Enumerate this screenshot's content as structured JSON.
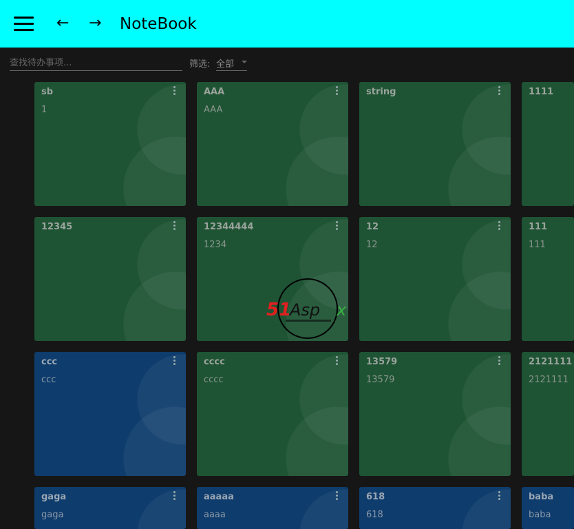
{
  "header": {
    "title": "NoteBook",
    "menu_icon": "hamburger-icon",
    "back_icon": "arrow-left-icon",
    "forward_icon": "arrow-right-icon",
    "background": "#00ffff"
  },
  "toolbar": {
    "search_placeholder": "查找待办事项...",
    "filter_label": "筛选:",
    "filter_value": "全部"
  },
  "colors": {
    "green": "#1e5434",
    "blue": "#0e3c6c",
    "background": "#161616"
  },
  "cards": [
    {
      "title": "sb",
      "body": "1",
      "color": "green"
    },
    {
      "title": "AAA",
      "body": "AAA",
      "color": "green"
    },
    {
      "title": "string",
      "body": "",
      "color": "green"
    },
    {
      "title": "1111",
      "body": "",
      "color": "green"
    },
    {
      "title": "12345",
      "body": "",
      "color": "green"
    },
    {
      "title": "12344444",
      "body": "1234",
      "color": "green"
    },
    {
      "title": "12",
      "body": "12",
      "color": "green"
    },
    {
      "title": "111",
      "body": "111",
      "color": "green"
    },
    {
      "title": "ccc",
      "body": "ccc",
      "color": "blue"
    },
    {
      "title": "cccc",
      "body": "cccc",
      "color": "green"
    },
    {
      "title": "13579",
      "body": "13579",
      "color": "green"
    },
    {
      "title": "2121111",
      "body": "2121111",
      "color": "green"
    },
    {
      "title": "gaga",
      "body": "gaga",
      "color": "blue"
    },
    {
      "title": "aaaaa",
      "body": "aaaa",
      "color": "blue"
    },
    {
      "title": "618",
      "body": "618",
      "color": "blue"
    },
    {
      "title": "baba",
      "body": "baba",
      "color": "blue"
    }
  ],
  "watermark": {
    "text": "51Aspx"
  }
}
